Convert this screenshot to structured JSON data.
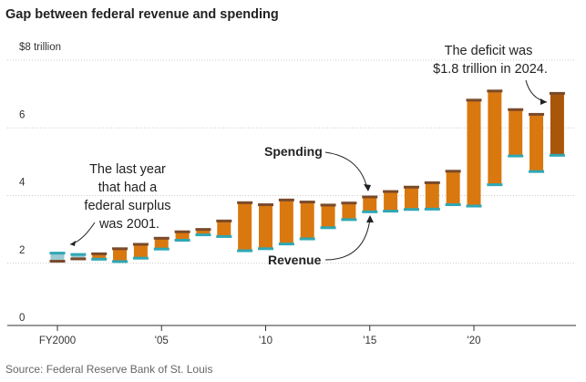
{
  "title": "Gap between federal revenue and spending",
  "source": "Source: Federal Reserve Bank of St. Louis",
  "colors": {
    "deficit_bar": "#d9780f",
    "deficit_bar_latest": "#a9550a",
    "surplus_bar": "#9ec9d3",
    "spending_cap": "#7a4a2a",
    "revenue_cap": "#2fa7b5",
    "grid": "#cccccc"
  },
  "annotations": {
    "surplus_note": [
      "The last year",
      "that had a",
      "federal surplus",
      "was 2001."
    ],
    "deficit_note": [
      "The deficit was",
      "$1.8 trillion in 2024."
    ],
    "spending_label": "Spending",
    "revenue_label": "Revenue"
  },
  "chart_data": {
    "type": "bar",
    "title": "Gap between federal revenue and spending",
    "unit": "trillion dollars",
    "y_tick_labels": [
      "0",
      "2",
      "4",
      "6",
      "$8 trillion"
    ],
    "y_ticks": [
      0,
      2,
      4,
      6,
      8
    ],
    "ylim": [
      0,
      8
    ],
    "x_tick_labels": [
      "FY2000",
      "'05",
      "'10",
      "'15",
      "'20"
    ],
    "x_ticks": [
      2000,
      2005,
      2010,
      2015,
      2020
    ],
    "grid": true,
    "x": [
      2000,
      2001,
      2002,
      2003,
      2004,
      2005,
      2006,
      2007,
      2008,
      2009,
      2010,
      2011,
      2012,
      2013,
      2014,
      2015,
      2016,
      2017,
      2018,
      2019,
      2020,
      2021,
      2022,
      2023,
      2024
    ],
    "series": [
      {
        "name": "Spending",
        "values": [
          1.79,
          1.86,
          2.01,
          2.16,
          2.29,
          2.47,
          2.66,
          2.73,
          2.98,
          3.52,
          3.46,
          3.6,
          3.54,
          3.45,
          3.51,
          3.69,
          3.85,
          3.98,
          4.11,
          4.45,
          6.55,
          6.82,
          6.27,
          6.13,
          6.75
        ]
      },
      {
        "name": "Revenue",
        "values": [
          2.03,
          1.99,
          1.85,
          1.78,
          1.88,
          2.15,
          2.41,
          2.57,
          2.52,
          2.1,
          2.16,
          2.3,
          2.45,
          2.78,
          3.02,
          3.25,
          3.27,
          3.32,
          3.33,
          3.46,
          3.42,
          4.05,
          4.9,
          4.44,
          4.92
        ]
      }
    ]
  }
}
